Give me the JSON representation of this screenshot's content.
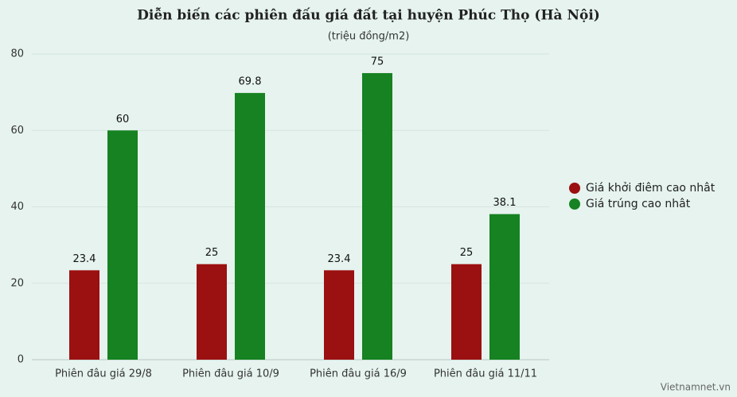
{
  "chart_data": {
    "type": "bar",
    "title": "Diễn biến các phiên đấu giá đất tại huyện Phúc Thọ (Hà Nội)",
    "subtitle": "(triệu đồng/m2)",
    "categories": [
      "Phiên đâu giá 29/8",
      "Phiên đâu giá 10/9",
      "Phiên đâu giá 16/9",
      "Phiên đâu giá 11/11"
    ],
    "series": [
      {
        "name": "Giá khởi điêm cao nhât",
        "color": "#9b1010",
        "values": [
          23.4,
          25,
          23.4,
          25
        ]
      },
      {
        "name": "Giá trúng cao nhât",
        "color": "#168221",
        "values": [
          60,
          69.8,
          75,
          38.1
        ]
      }
    ],
    "ylim": [
      0,
      80
    ],
    "yticks": [
      0,
      20,
      40,
      60,
      80
    ],
    "grid": true,
    "legend": "right",
    "source": "Vietnamnet.vn"
  }
}
